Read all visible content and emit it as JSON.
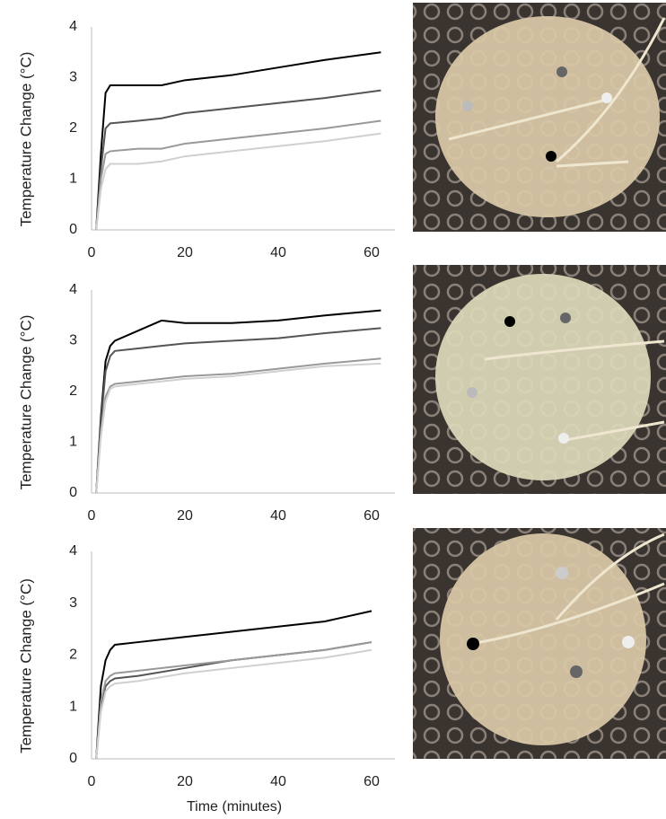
{
  "chart_data": [
    {
      "type": "line",
      "y_label": "Temperature Change (°C)",
      "xlim": [
        0,
        65
      ],
      "xticks": [
        0,
        20,
        40,
        60
      ],
      "ylim": [
        0,
        4
      ],
      "yticks": [
        0,
        1,
        2,
        3,
        4
      ],
      "x": [
        1,
        2,
        3,
        4,
        10,
        15,
        20,
        30,
        40,
        50,
        62
      ],
      "series": [
        {
          "color": "#000000",
          "values": [
            0,
            1.5,
            2.7,
            2.85,
            2.85,
            2.85,
            2.95,
            3.05,
            3.2,
            3.35,
            3.5
          ]
        },
        {
          "color": "#555555",
          "values": [
            0,
            1.2,
            2.0,
            2.1,
            2.15,
            2.2,
            2.3,
            2.4,
            2.5,
            2.6,
            2.75
          ]
        },
        {
          "color": "#999999",
          "values": [
            0,
            1.0,
            1.5,
            1.55,
            1.6,
            1.6,
            1.7,
            1.8,
            1.9,
            2.0,
            2.15
          ]
        },
        {
          "color": "#d0d0d0",
          "values": [
            0,
            0.8,
            1.2,
            1.3,
            1.3,
            1.35,
            1.45,
            1.55,
            1.65,
            1.75,
            1.9
          ]
        }
      ]
    },
    {
      "type": "line",
      "y_label": "Temperature Change (°C)",
      "xlim": [
        0,
        65
      ],
      "xticks": [
        0,
        20,
        40,
        60
      ],
      "ylim": [
        0,
        4
      ],
      "yticks": [
        0,
        1,
        2,
        3,
        4
      ],
      "x": [
        1,
        2,
        3,
        4,
        5,
        10,
        15,
        20,
        30,
        40,
        50,
        62
      ],
      "series": [
        {
          "color": "#000000",
          "values": [
            0,
            1.5,
            2.6,
            2.9,
            3.0,
            3.2,
            3.4,
            3.35,
            3.35,
            3.4,
            3.5,
            3.6
          ]
        },
        {
          "color": "#555555",
          "values": [
            0,
            1.4,
            2.4,
            2.7,
            2.8,
            2.85,
            2.9,
            2.95,
            3.0,
            3.05,
            3.15,
            3.25
          ]
        },
        {
          "color": "#999999",
          "values": [
            0,
            1.2,
            1.9,
            2.1,
            2.15,
            2.2,
            2.25,
            2.3,
            2.35,
            2.45,
            2.55,
            2.65
          ]
        },
        {
          "color": "#d0d0d0",
          "values": [
            0,
            1.1,
            1.8,
            2.05,
            2.1,
            2.15,
            2.2,
            2.25,
            2.3,
            2.4,
            2.5,
            2.55
          ]
        }
      ]
    },
    {
      "type": "line",
      "y_label": "Temperature Change (°C)",
      "x_label": "Time (minutes)",
      "xlim": [
        0,
        65
      ],
      "xticks": [
        0,
        20,
        40,
        60
      ],
      "ylim": [
        0,
        4
      ],
      "yticks": [
        0,
        1,
        2,
        3,
        4
      ],
      "x": [
        1,
        2,
        3,
        4,
        5,
        10,
        20,
        30,
        40,
        50,
        60
      ],
      "series": [
        {
          "color": "#000000",
          "values": [
            0,
            1.4,
            1.9,
            2.1,
            2.2,
            2.25,
            2.35,
            2.45,
            2.55,
            2.65,
            2.85
          ]
        },
        {
          "color": "#555555",
          "values": [
            0,
            1.0,
            1.4,
            1.5,
            1.55,
            1.6,
            1.75,
            1.9,
            2.0,
            2.1,
            2.25
          ]
        },
        {
          "color": "#999999",
          "values": [
            0,
            1.1,
            1.5,
            1.6,
            1.65,
            1.7,
            1.8,
            1.9,
            2.0,
            2.1,
            2.25
          ]
        },
        {
          "color": "#d0d0d0",
          "values": [
            0,
            0.9,
            1.3,
            1.4,
            1.45,
            1.5,
            1.65,
            1.75,
            1.85,
            1.95,
            2.1
          ]
        }
      ]
    }
  ]
}
